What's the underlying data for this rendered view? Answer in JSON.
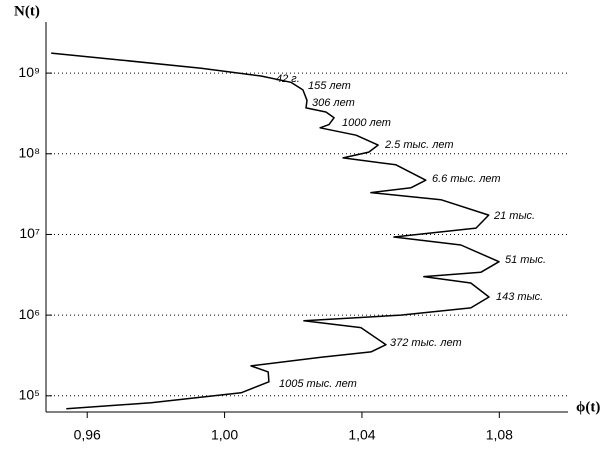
{
  "chart_data": {
    "type": "line",
    "x_label": "ϕ(t)",
    "y_label": "N(t)",
    "color": "#000000",
    "log_y": true,
    "grid": "y",
    "xlim": [
      0.948,
      1.1
    ],
    "ylim": [
      63000,
      4300000000
    ],
    "xticks": [
      {
        "value": 0.96,
        "label": "0,96"
      },
      {
        "value": 1.0,
        "label": "1,00"
      },
      {
        "value": 1.04,
        "label": "1,04"
      },
      {
        "value": 1.08,
        "label": "1,08"
      }
    ],
    "yticks": [
      {
        "value": 100000,
        "label": "10⁵"
      },
      {
        "value": 1000000,
        "label": "10⁶"
      },
      {
        "value": 10000000,
        "label": "10⁷"
      },
      {
        "value": 100000000,
        "label": "10⁸"
      },
      {
        "value": 1000000000,
        "label": "10⁹"
      }
    ],
    "x": [
      0.9495,
      0.9699,
      0.9932,
      1.0106,
      1.0193,
      1.0228,
      1.024,
      1.0237,
      1.0295,
      1.0319,
      1.0304,
      1.0278,
      1.0383,
      1.0447,
      1.042,
      1.0345,
      1.0499,
      1.0586,
      1.0543,
      1.0426,
      1.063,
      1.0769,
      1.0732,
      1.0493,
      1.0688,
      1.0799,
      1.0746,
      1.058,
      1.0717,
      1.077,
      1.0717,
      1.0513,
      1.0231,
      1.0397,
      1.047,
      1.0426,
      1.0281,
      1.0077,
      1.0127,
      1.0129,
      1.0048,
      0.9786,
      0.9539
    ],
    "values": [
      1770000000,
      1450000000,
      1150000000,
      920000000,
      770000000,
      620000000,
      460000000,
      370000000,
      330000000,
      280000000,
      230000000,
      210000000,
      170000000,
      128000000,
      105000000,
      89000000,
      73000000,
      47000000,
      38000000,
      33000000,
      27000000,
      17400000,
      12000000,
      9300000,
      7400000,
      4600000,
      3400000,
      3000000,
      2500000,
      1680000,
      1230000,
      1000000,
      850000,
      700000,
      430000,
      350000,
      300000,
      235000,
      198000,
      149000,
      109000,
      82000,
      69000
    ],
    "annotations": [
      "42 г.",
      "155 лет",
      "306 лет",
      "1000 лет",
      "2.5 тыс. лет",
      "6.6 тыс. лет",
      "21 тыс.",
      "51 тыс.",
      "143 тыс.",
      "372 тыс. лет",
      "1005 тыс. лет"
    ]
  }
}
